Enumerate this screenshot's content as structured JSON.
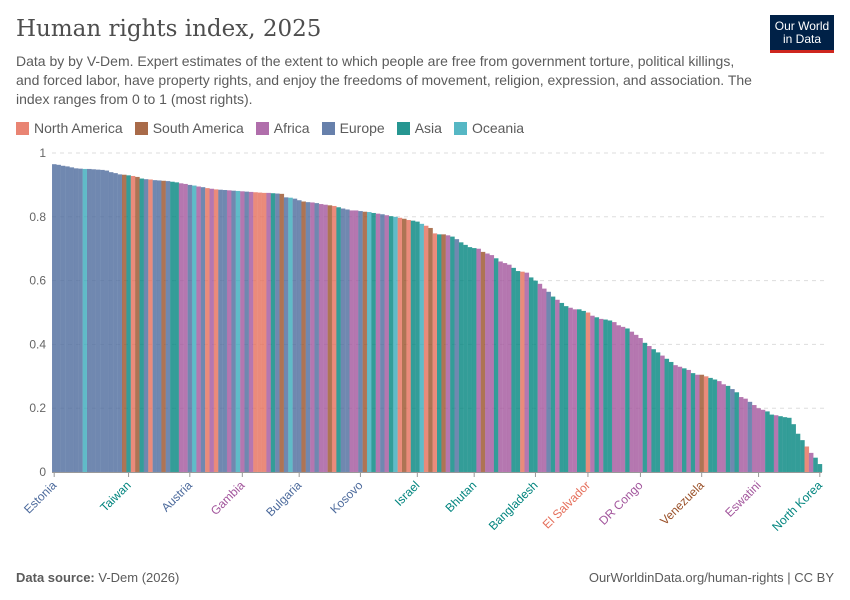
{
  "header": {
    "title": "Human rights index, 2025",
    "subtitle": "Data by by V-Dem. Expert estimates of the extent to which people are free from government torture, political killings, and forced labor, have property rights, and enjoy the freedoms of movement, religion, expression, and association. The index ranges from 0 to 1 (most rights).",
    "logo": "Our World in Data"
  },
  "footer": {
    "source_label": "Data source:",
    "source": "V-Dem (2026)",
    "link": "OurWorldinData.org/human-rights | CC BY"
  },
  "colors": {
    "North America": "#e56e5a",
    "South America": "#9a5129",
    "Africa": "#a2559c",
    "Europe": "#4c6a9c",
    "Asia": "#00847e",
    "Oceania": "#38aaba"
  },
  "chart_data": {
    "type": "bar",
    "title": "Human rights index, 2025",
    "ylim": [
      0,
      1
    ],
    "yticks": [
      "0",
      "0.2",
      "0.4",
      "0.6",
      "0.8",
      "1"
    ],
    "grid": true,
    "legend": {
      "placement": "top-left",
      "entries": [
        "North America",
        "South America",
        "Africa",
        "Europe",
        "Asia",
        "Oceania"
      ]
    },
    "labeled_bars": [
      {
        "index": 0,
        "name": "Estonia",
        "region": "Europe"
      },
      {
        "index": 17,
        "name": "Taiwan",
        "region": "Asia"
      },
      {
        "index": 31,
        "name": "Austria",
        "region": "Europe"
      },
      {
        "index": 43,
        "name": "Gambia",
        "region": "Africa"
      },
      {
        "index": 56,
        "name": "Bulgaria",
        "region": "Europe"
      },
      {
        "index": 70,
        "name": "Kosovo",
        "region": "Europe"
      },
      {
        "index": 83,
        "name": "Israel",
        "region": "Asia"
      },
      {
        "index": 96,
        "name": "Bhutan",
        "region": "Asia"
      },
      {
        "index": 110,
        "name": "Bangladesh",
        "region": "Asia"
      },
      {
        "index": 122,
        "name": "El Salvador",
        "region": "North America"
      },
      {
        "index": 134,
        "name": "DR Congo",
        "region": "Africa"
      },
      {
        "index": 148,
        "name": "Venezuela",
        "region": "South America"
      },
      {
        "index": 161,
        "name": "Eswatini",
        "region": "Africa"
      },
      {
        "index": 175,
        "name": "North Korea",
        "region": "Asia"
      }
    ],
    "values": [
      0.965,
      0.963,
      0.96,
      0.958,
      0.955,
      0.952,
      0.951,
      0.95,
      0.95,
      0.949,
      0.948,
      0.947,
      0.945,
      0.94,
      0.937,
      0.933,
      0.932,
      0.93,
      0.928,
      0.925,
      0.92,
      0.918,
      0.917,
      0.915,
      0.914,
      0.913,
      0.912,
      0.91,
      0.908,
      0.905,
      0.903,
      0.9,
      0.898,
      0.895,
      0.893,
      0.89,
      0.888,
      0.886,
      0.885,
      0.884,
      0.883,
      0.882,
      0.881,
      0.88,
      0.879,
      0.878,
      0.877,
      0.876,
      0.875,
      0.875,
      0.874,
      0.873,
      0.872,
      0.861,
      0.86,
      0.857,
      0.852,
      0.848,
      0.846,
      0.845,
      0.843,
      0.84,
      0.838,
      0.836,
      0.834,
      0.83,
      0.826,
      0.823,
      0.82,
      0.82,
      0.818,
      0.816,
      0.815,
      0.812,
      0.81,
      0.808,
      0.805,
      0.802,
      0.8,
      0.797,
      0.794,
      0.79,
      0.788,
      0.785,
      0.778,
      0.772,
      0.765,
      0.748,
      0.745,
      0.745,
      0.742,
      0.738,
      0.73,
      0.72,
      0.712,
      0.705,
      0.702,
      0.7,
      0.69,
      0.685,
      0.68,
      0.67,
      0.66,
      0.655,
      0.65,
      0.64,
      0.63,
      0.628,
      0.625,
      0.61,
      0.6,
      0.59,
      0.575,
      0.565,
      0.55,
      0.54,
      0.53,
      0.52,
      0.515,
      0.51,
      0.51,
      0.505,
      0.5,
      0.49,
      0.485,
      0.48,
      0.478,
      0.475,
      0.47,
      0.46,
      0.455,
      0.45,
      0.44,
      0.43,
      0.42,
      0.405,
      0.395,
      0.385,
      0.375,
      0.365,
      0.355,
      0.345,
      0.335,
      0.33,
      0.325,
      0.32,
      0.31,
      0.305,
      0.305,
      0.3,
      0.295,
      0.29,
      0.285,
      0.275,
      0.27,
      0.26,
      0.25,
      0.235,
      0.23,
      0.22,
      0.21,
      0.2,
      0.195,
      0.19,
      0.18,
      0.178,
      0.175,
      0.172,
      0.17,
      0.15,
      0.12,
      0.1,
      0.08,
      0.06,
      0.045,
      0.025
    ],
    "regions": [
      "Europe",
      "Europe",
      "Europe",
      "Europe",
      "Europe",
      "Europe",
      "Europe",
      "Oceania",
      "Europe",
      "Europe",
      "Europe",
      "Europe",
      "Europe",
      "Europe",
      "Europe",
      "Europe",
      "South America",
      "Asia",
      "North America",
      "South America",
      "Asia",
      "Europe",
      "North America",
      "Europe",
      "Europe",
      "South America",
      "Europe",
      "Asia",
      "Asia",
      "Africa",
      "Africa",
      "Europe",
      "Oceania",
      "Africa",
      "Europe",
      "North America",
      "Africa",
      "North America",
      "Europe",
      "Europe",
      "Africa",
      "Europe",
      "Oceania",
      "Africa",
      "Europe",
      "Africa",
      "North America",
      "North America",
      "North America",
      "Africa",
      "Asia",
      "Europe",
      "South America",
      "Europe",
      "Oceania",
      "Europe",
      "Europe",
      "South America",
      "Europe",
      "Africa",
      "Europe",
      "Africa",
      "Africa",
      "South America",
      "North America",
      "Asia",
      "Europe",
      "Europe",
      "Africa",
      "Africa",
      "Europe",
      "South America",
      "Oceania",
      "Asia",
      "Africa",
      "Europe",
      "Africa",
      "Asia",
      "Oceania",
      "North America",
      "South America",
      "North America",
      "Asia",
      "Asia",
      "Oceania",
      "North America",
      "South America",
      "North America",
      "Asia",
      "South America",
      "Africa",
      "Asia",
      "Europe",
      "Asia",
      "Asia",
      "Asia",
      "Asia",
      "Africa",
      "South America",
      "Africa",
      "Africa",
      "Asia",
      "Africa",
      "Africa",
      "Africa",
      "Asia",
      "Asia",
      "North America",
      "Africa",
      "Asia",
      "Asia",
      "Africa",
      "Africa",
      "Europe",
      "Asia",
      "Africa",
      "Asia",
      "Asia",
      "Africa",
      "Africa",
      "Asia",
      "Asia",
      "North America",
      "Africa",
      "Asia",
      "Africa",
      "Asia",
      "Asia",
      "Africa",
      "Africa",
      "Africa",
      "Asia",
      "Africa",
      "Africa",
      "Africa",
      "Asia",
      "Africa",
      "Asia",
      "Asia",
      "Africa",
      "Asia",
      "Asia",
      "Africa",
      "Africa",
      "Asia",
      "Africa",
      "Asia",
      "Africa",
      "South America",
      "North America",
      "Asia",
      "Asia",
      "Africa",
      "Africa",
      "Asia",
      "Europe",
      "Asia",
      "Africa",
      "Africa",
      "Europe",
      "Africa",
      "Africa",
      "Africa",
      "Asia",
      "Asia",
      "Africa",
      "Asia",
      "Asia",
      "Asia",
      "Asia",
      "Asia",
      "Asia",
      "North America",
      "Africa",
      "Asia",
      "Asia"
    ]
  }
}
